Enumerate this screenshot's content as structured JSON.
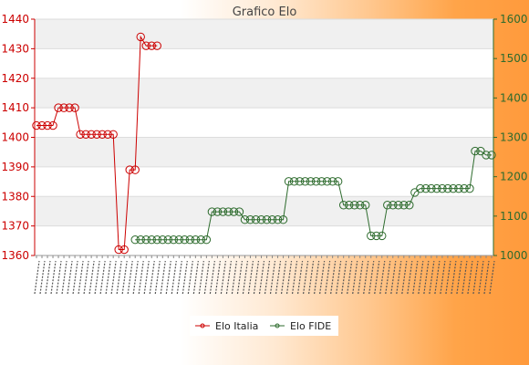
{
  "chart_data": {
    "type": "line",
    "title": "Grafico Elo",
    "y_left": {
      "ylim": [
        1360,
        1440
      ],
      "ticks": [
        1360,
        1370,
        1380,
        1390,
        1400,
        1410,
        1420,
        1430,
        1440
      ],
      "color": "#cc0000"
    },
    "y_right": {
      "ylim": [
        1000,
        1600
      ],
      "ticks": [
        1000,
        1100,
        1200,
        1300,
        1400,
        1500,
        1600
      ],
      "color": "#2d6b2d"
    },
    "grid": "horizontal bands",
    "legend_position": "bottom-center",
    "x_count": 84,
    "series": [
      {
        "name": "Elo Italia",
        "axis": "left",
        "color": "#cc0000",
        "x_index": [
          0,
          1,
          2,
          3,
          4,
          5,
          6,
          7,
          8,
          9,
          10,
          11,
          12,
          13,
          14,
          15,
          16,
          17,
          18,
          19,
          20,
          21,
          22
        ],
        "values": [
          1404,
          1404,
          1404,
          1404,
          1410,
          1410,
          1410,
          1410,
          1401,
          1401,
          1401,
          1401,
          1401,
          1401,
          1401,
          1362,
          1362,
          1389,
          1389,
          1434,
          1431,
          1431,
          1431
        ]
      },
      {
        "name": "Elo FIDE",
        "axis": "right",
        "color": "#2d6b2d",
        "x_index": [
          18,
          19,
          20,
          21,
          22,
          23,
          24,
          25,
          26,
          27,
          28,
          29,
          30,
          31,
          32,
          33,
          34,
          35,
          36,
          37,
          38,
          39,
          40,
          41,
          42,
          43,
          44,
          45,
          46,
          47,
          48,
          49,
          50,
          51,
          52,
          53,
          54,
          55,
          56,
          57,
          58,
          59,
          60,
          61,
          62,
          63,
          64,
          65,
          66,
          67,
          68,
          69,
          70,
          71,
          72,
          73,
          74,
          75,
          76,
          77,
          78,
          79,
          80,
          81,
          82,
          83
        ],
        "values": [
          1040,
          1040,
          1040,
          1040,
          1040,
          1040,
          1040,
          1040,
          1040,
          1040,
          1040,
          1040,
          1040,
          1040,
          1111,
          1111,
          1111,
          1111,
          1111,
          1111,
          1091,
          1091,
          1091,
          1091,
          1091,
          1091,
          1091,
          1091,
          1188,
          1188,
          1188,
          1188,
          1188,
          1188,
          1188,
          1188,
          1188,
          1188,
          1128,
          1128,
          1128,
          1128,
          1128,
          1050,
          1050,
          1050,
          1128,
          1128,
          1128,
          1128,
          1128,
          1160,
          1170,
          1170,
          1170,
          1170,
          1170,
          1170,
          1170,
          1170,
          1170,
          1170,
          1265,
          1265,
          1255,
          1255
        ]
      }
    ]
  }
}
